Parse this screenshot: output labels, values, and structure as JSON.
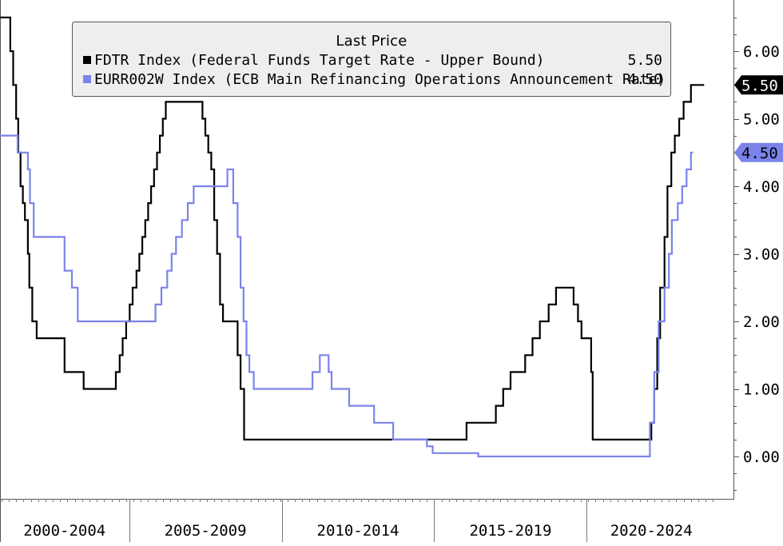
{
  "chart_data": {
    "type": "line",
    "title": "Last Price",
    "xlabel": "",
    "ylabel": "",
    "ylim": [
      -0.6,
      6.75
    ],
    "y_ticks": [
      0,
      1,
      2,
      3,
      4,
      5,
      6
    ],
    "y_tick_labels": [
      "0.00",
      "1.00",
      "2.00",
      "3.00",
      "4.00",
      "5.00",
      "6.00"
    ],
    "x_range": [
      2000.0,
      2024.4
    ],
    "x_period_labels": [
      "2000-2004",
      "2005-2009",
      "2010-2014",
      "2015-2019",
      "2020-2024"
    ],
    "x_period_bounds": [
      2004.4,
      2009.6,
      2014.8,
      2020.0
    ],
    "grid": false,
    "legend_position": "top",
    "series": [
      {
        "name": "FDTR Index (Federal Funds Target Rate - Upper Bound)",
        "color": "#000000",
        "last_value": 5.5,
        "last_value_label": "5.50",
        "steps": [
          [
            2000.0,
            6.5
          ],
          [
            2000.35,
            6.0
          ],
          [
            2000.45,
            5.5
          ],
          [
            2000.55,
            5.0
          ],
          [
            2000.62,
            4.5
          ],
          [
            2000.7,
            4.0
          ],
          [
            2000.78,
            3.75
          ],
          [
            2000.85,
            3.5
          ],
          [
            2000.95,
            3.0
          ],
          [
            2001.0,
            2.5
          ],
          [
            2001.1,
            2.0
          ],
          [
            2001.25,
            1.75
          ],
          [
            2002.2,
            1.25
          ],
          [
            2002.85,
            1.0
          ],
          [
            2003.95,
            1.25
          ],
          [
            2004.08,
            1.5
          ],
          [
            2004.18,
            1.75
          ],
          [
            2004.3,
            2.0
          ],
          [
            2004.42,
            2.25
          ],
          [
            2004.52,
            2.5
          ],
          [
            2004.65,
            2.75
          ],
          [
            2004.75,
            3.0
          ],
          [
            2004.85,
            3.25
          ],
          [
            2004.95,
            3.5
          ],
          [
            2005.05,
            3.75
          ],
          [
            2005.15,
            4.0
          ],
          [
            2005.25,
            4.25
          ],
          [
            2005.35,
            4.5
          ],
          [
            2005.45,
            4.75
          ],
          [
            2005.55,
            5.0
          ],
          [
            2005.65,
            5.25
          ],
          [
            2006.9,
            5.0
          ],
          [
            2007.0,
            4.75
          ],
          [
            2007.1,
            4.5
          ],
          [
            2007.2,
            4.25
          ],
          [
            2007.3,
            3.5
          ],
          [
            2007.4,
            3.0
          ],
          [
            2007.5,
            2.25
          ],
          [
            2007.6,
            2.0
          ],
          [
            2008.1,
            1.5
          ],
          [
            2008.2,
            1.0
          ],
          [
            2008.32,
            0.25
          ],
          [
            2015.9,
            0.5
          ],
          [
            2016.9,
            0.75
          ],
          [
            2017.15,
            1.0
          ],
          [
            2017.4,
            1.25
          ],
          [
            2017.9,
            1.5
          ],
          [
            2018.15,
            1.75
          ],
          [
            2018.4,
            2.0
          ],
          [
            2018.7,
            2.25
          ],
          [
            2018.95,
            2.5
          ],
          [
            2019.55,
            2.25
          ],
          [
            2019.7,
            2.0
          ],
          [
            2019.82,
            1.75
          ],
          [
            2020.15,
            1.25
          ],
          [
            2020.2,
            0.25
          ],
          [
            2022.2,
            0.5
          ],
          [
            2022.3,
            1.0
          ],
          [
            2022.4,
            1.75
          ],
          [
            2022.5,
            2.5
          ],
          [
            2022.65,
            3.25
          ],
          [
            2022.75,
            4.0
          ],
          [
            2022.88,
            4.5
          ],
          [
            2023.0,
            4.75
          ],
          [
            2023.15,
            5.0
          ],
          [
            2023.3,
            5.25
          ],
          [
            2023.55,
            5.5
          ],
          [
            2024.0,
            5.5
          ]
        ]
      },
      {
        "name": "EURR002W Index (ECB Main Refinancing Operations Announcement Rate)",
        "color": "#7b83ea",
        "last_value": 4.5,
        "last_value_label": "4.50",
        "steps": [
          [
            2000.0,
            4.75
          ],
          [
            2000.6,
            4.5
          ],
          [
            2000.95,
            4.25
          ],
          [
            2001.02,
            3.75
          ],
          [
            2001.15,
            3.25
          ],
          [
            2002.2,
            2.75
          ],
          [
            2002.45,
            2.5
          ],
          [
            2002.65,
            2.0
          ],
          [
            2005.3,
            2.25
          ],
          [
            2005.5,
            2.5
          ],
          [
            2005.7,
            2.75
          ],
          [
            2005.85,
            3.0
          ],
          [
            2006.0,
            3.25
          ],
          [
            2006.2,
            3.5
          ],
          [
            2006.4,
            3.75
          ],
          [
            2006.6,
            4.0
          ],
          [
            2007.75,
            4.25
          ],
          [
            2007.95,
            3.75
          ],
          [
            2008.1,
            3.25
          ],
          [
            2008.2,
            2.5
          ],
          [
            2008.3,
            2.0
          ],
          [
            2008.4,
            1.5
          ],
          [
            2008.5,
            1.25
          ],
          [
            2008.65,
            1.0
          ],
          [
            2010.65,
            1.25
          ],
          [
            2010.9,
            1.5
          ],
          [
            2011.2,
            1.25
          ],
          [
            2011.3,
            1.0
          ],
          [
            2011.9,
            0.75
          ],
          [
            2012.75,
            0.5
          ],
          [
            2013.4,
            0.25
          ],
          [
            2014.55,
            0.15
          ],
          [
            2014.75,
            0.05
          ],
          [
            2016.3,
            0.0
          ],
          [
            2022.15,
            0.5
          ],
          [
            2022.3,
            1.25
          ],
          [
            2022.45,
            2.0
          ],
          [
            2022.65,
            2.5
          ],
          [
            2022.8,
            3.0
          ],
          [
            2022.9,
            3.5
          ],
          [
            2023.1,
            3.75
          ],
          [
            2023.25,
            4.0
          ],
          [
            2023.4,
            4.25
          ],
          [
            2023.55,
            4.5
          ],
          [
            2023.62,
            4.5
          ]
        ]
      }
    ]
  }
}
